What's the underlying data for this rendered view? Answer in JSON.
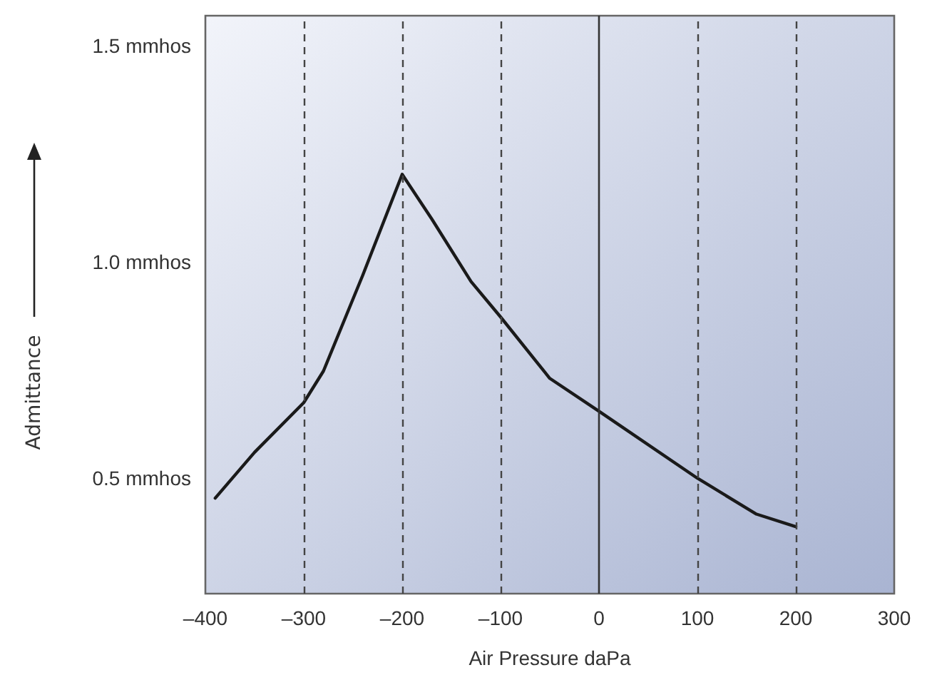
{
  "chart_data": {
    "type": "line",
    "xlabel": "Air Pressure daPa",
    "ylabel": "Admittance",
    "x": [
      -390,
      -350,
      -300,
      -280,
      -240,
      -200,
      -170,
      -130,
      -100,
      -50,
      0,
      100,
      160,
      200
    ],
    "series": [
      {
        "color": "#1a1a1a",
        "values": [
          0.454,
          0.56,
          0.675,
          0.748,
          0.97,
          1.203,
          1.1,
          0.955,
          0.873,
          0.731,
          0.655,
          0.5,
          0.417,
          0.388
        ]
      }
    ],
    "xlim": [
      -400,
      300
    ],
    "xticks": [
      {
        "value": -400,
        "label": "–400"
      },
      {
        "value": -300,
        "label": "–300"
      },
      {
        "value": -200,
        "label": "–200"
      },
      {
        "value": -100,
        "label": "–100"
      },
      0,
      100,
      200,
      300
    ],
    "ylim": [
      0.233,
      1.57
    ],
    "yticks": [
      {
        "value": 0.5,
        "label": "0.5 mmhos"
      },
      {
        "value": 1.0,
        "label": "1.0 mmhos"
      },
      {
        "value": 1.5,
        "label": "1.5 mmhos"
      }
    ],
    "grid": "x",
    "marker": "none",
    "line_style": "solid",
    "ref_lines": [
      {
        "axis": "x",
        "value": 0,
        "color": "#333333",
        "line_style": "solid"
      }
    ]
  }
}
